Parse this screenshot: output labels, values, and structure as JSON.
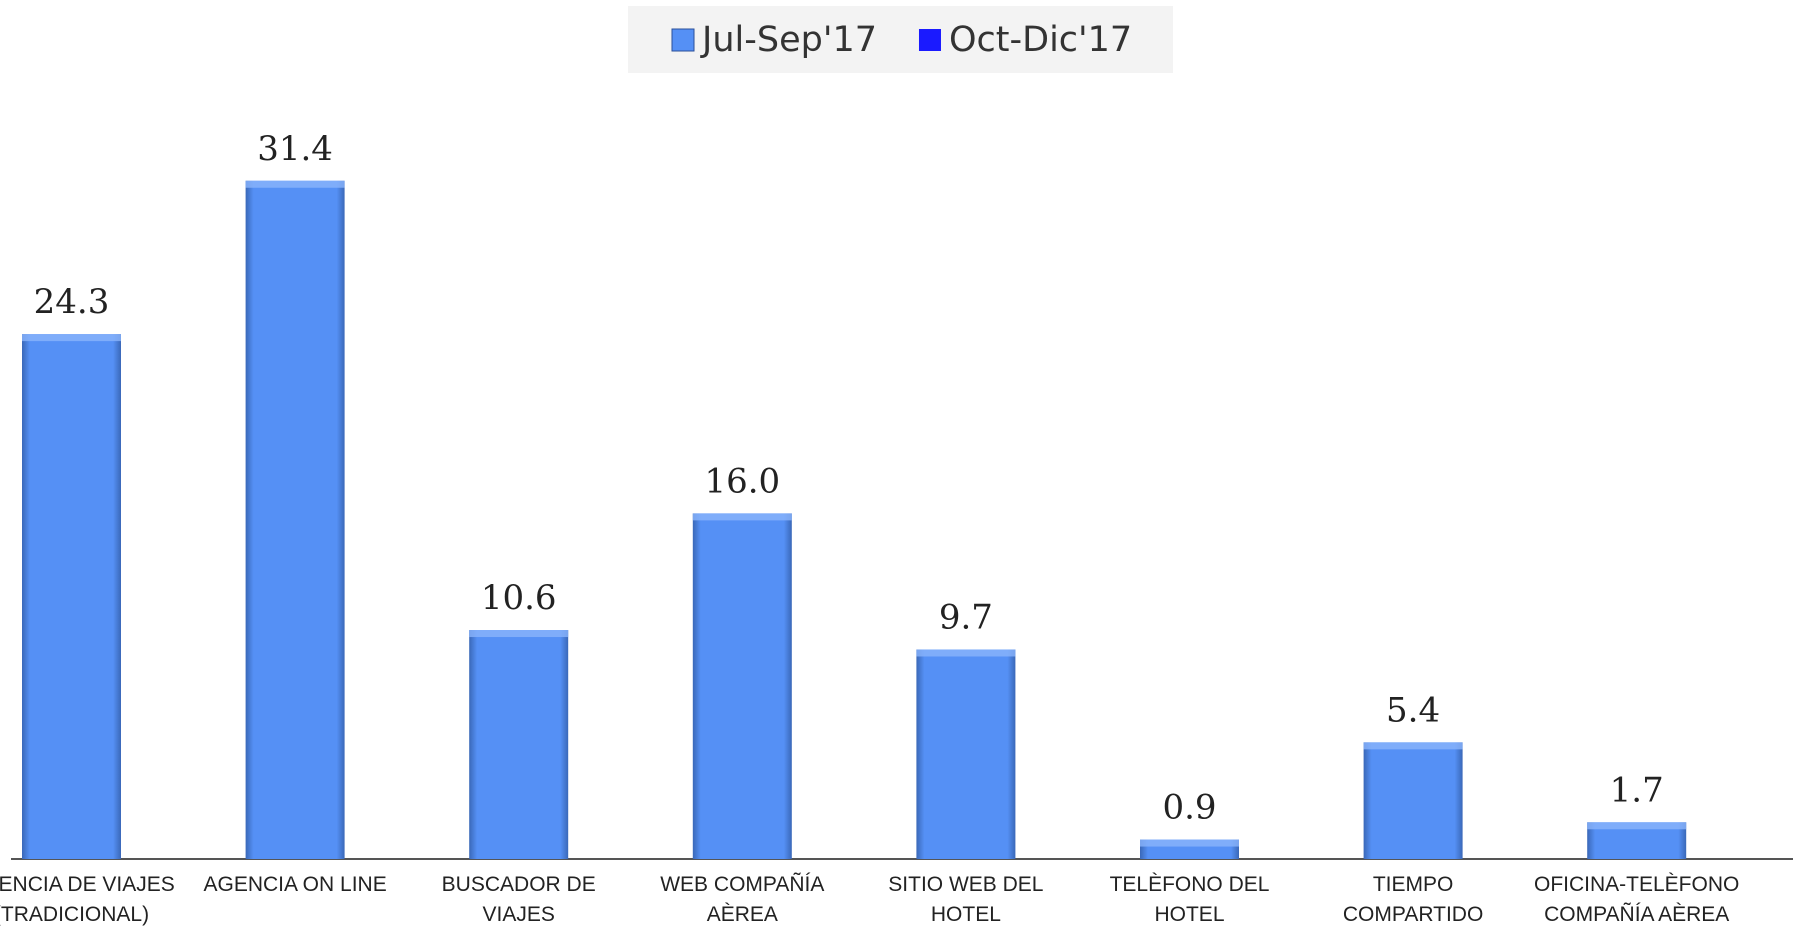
{
  "chart_data": {
    "type": "bar",
    "categories": [
      "AGENCIA DE VIAJES\n(TRADICIONAL)",
      "AGENCIA ON LINE",
      "BUSCADOR DE\nVIAJES",
      "WEB COMPAÑÍA\nAÈREA",
      "SITIO WEB DEL\nHOTEL",
      "TELÈFONO DEL\nHOTEL",
      "TIEMPO\nCOMPARTIDO",
      "OFICINA-TELÈFONO\nCOMPAÑÍA AÈREA"
    ],
    "series": [
      {
        "name": "Jul-Sep'17",
        "color": "#5590f5",
        "values": [
          24.3,
          31.4,
          10.6,
          16.0,
          9.7,
          0.9,
          5.4,
          1.7
        ],
        "value_labels": [
          "24.3",
          "31.4",
          "10.6",
          "16.0",
          "9.7",
          "0.9",
          "5.4",
          "1.7"
        ]
      },
      {
        "name": "Oct-Dic'17",
        "color": "#1a1aff",
        "values": [
          null,
          null,
          null,
          null,
          null,
          null,
          null,
          null
        ]
      }
    ],
    "ylim": [
      0,
      35
    ],
    "legend": "top"
  }
}
